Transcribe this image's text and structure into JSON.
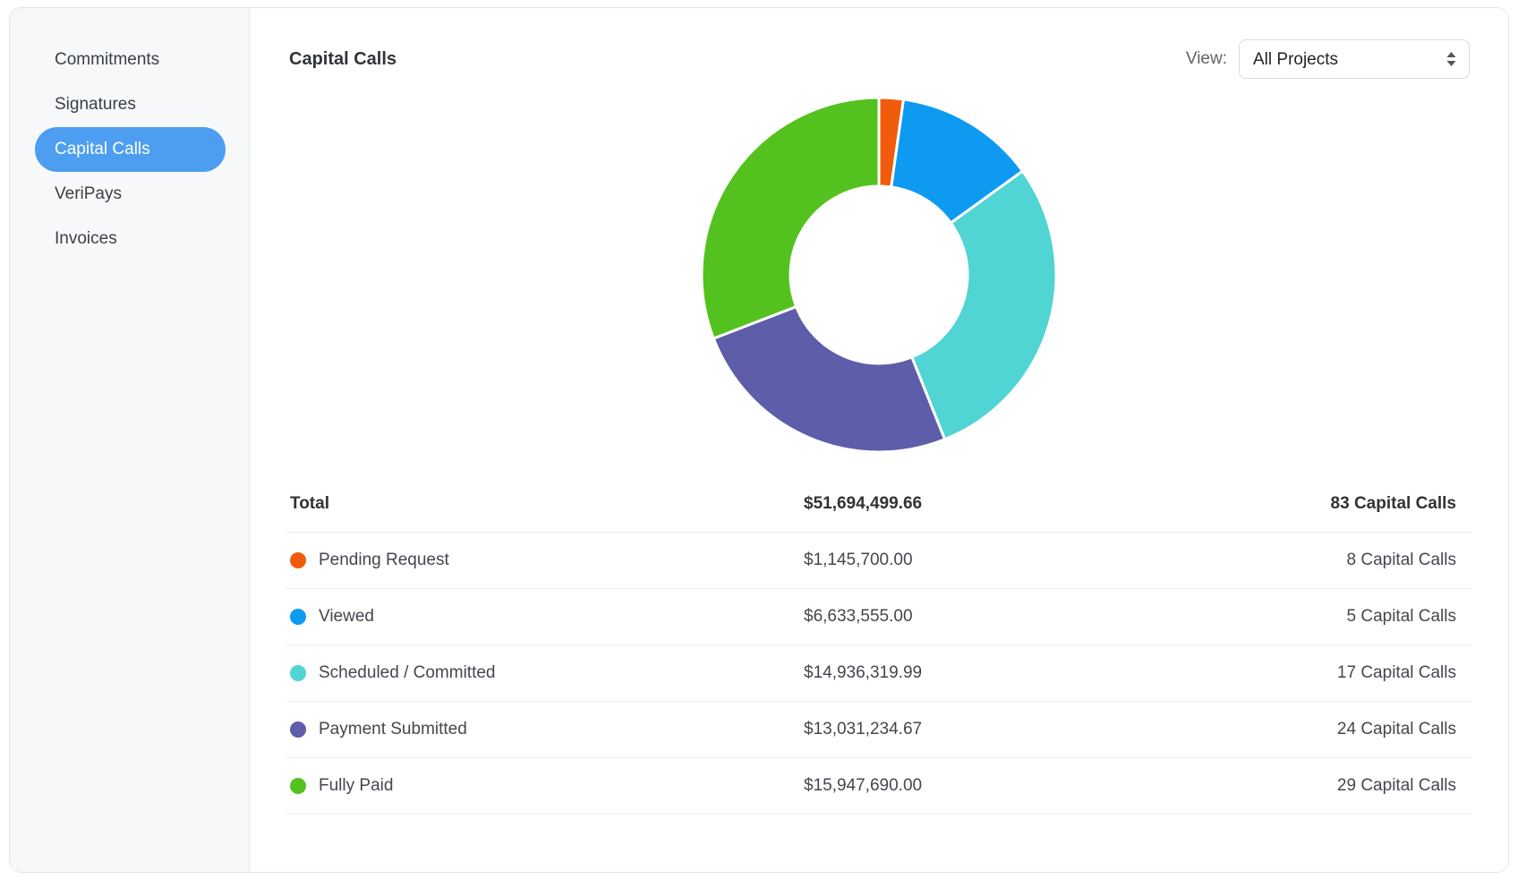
{
  "sidebar": {
    "items": [
      {
        "label": "Commitments",
        "active": false
      },
      {
        "label": "Signatures",
        "active": false
      },
      {
        "label": "Capital Calls",
        "active": true
      },
      {
        "label": "VeriPays",
        "active": false
      },
      {
        "label": "Invoices",
        "active": false
      }
    ]
  },
  "header": {
    "title": "Capital Calls",
    "view_label": "View:",
    "view_value": "All Projects"
  },
  "chart_data": {
    "type": "pie",
    "subtype": "donut",
    "title": "Capital Calls",
    "legend_position": "table-below",
    "total": {
      "label": "Total",
      "amount": 51694499.66,
      "amount_display": "$51,694,499.66",
      "count": 83,
      "count_display": "83 Capital Calls"
    },
    "segments": [
      {
        "label": "Pending Request",
        "amount": 1145700.0,
        "amount_display": "$1,145,700.00",
        "count": 8,
        "count_display": "8 Capital Calls",
        "color": "#f15c0c"
      },
      {
        "label": "Viewed",
        "amount": 6633555.0,
        "amount_display": "$6,633,555.00",
        "count": 5,
        "count_display": "5 Capital Calls",
        "color": "#0f9af2"
      },
      {
        "label": "Scheduled / Committed",
        "amount": 14936319.99,
        "amount_display": "$14,936,319.99",
        "count": 17,
        "count_display": "17 Capital Calls",
        "color": "#50d4d4"
      },
      {
        "label": "Payment Submitted",
        "amount": 13031234.67,
        "amount_display": "$13,031,234.67",
        "count": 24,
        "count_display": "24 Capital Calls",
        "color": "#5d5da9"
      },
      {
        "label": "Fully Paid",
        "amount": 15947690.0,
        "amount_display": "$15,947,690.00",
        "count": 29,
        "count_display": "29 Capital Calls",
        "color": "#54c21e"
      }
    ]
  },
  "colors": {
    "active_nav_bg": "#4d9ef1",
    "sidebar_bg": "#f7f8fa",
    "card_border": "#e2e4e8",
    "row_divider": "#edeef0",
    "slice_gap": "#ffffff"
  }
}
